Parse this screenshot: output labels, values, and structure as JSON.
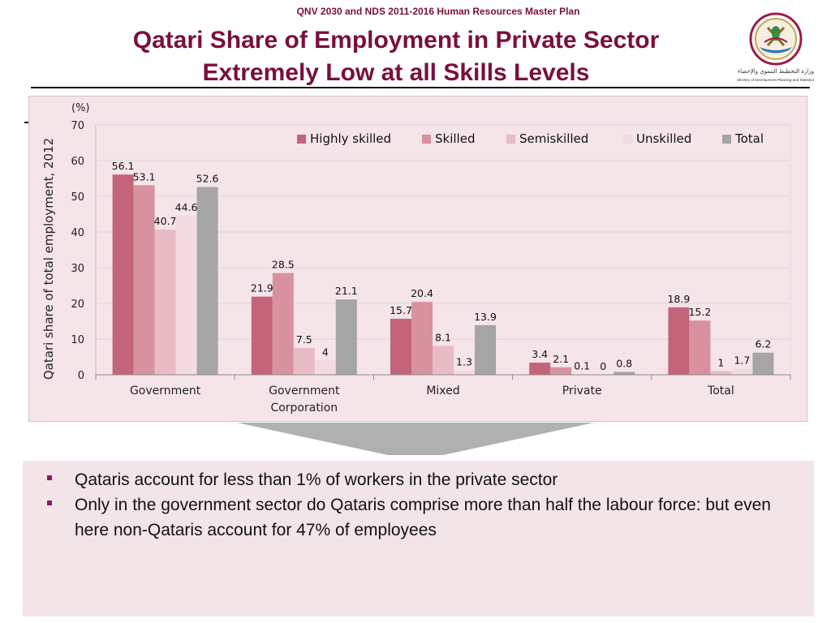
{
  "header": {
    "caption": "QNV 2030 and NDS 2011-2016 Human Resources Master Plan",
    "title_line1": "Qatari Share of Employment in Private Sector",
    "title_line2": "Extremely Low at all Skills Levels"
  },
  "logo": {
    "icon": "qatar-emblem-icon",
    "arabic_text": "وزارة التخطيط التنموي والإحصاء",
    "english_text": "Ministry of Development Planning and Statistics"
  },
  "chart_data": {
    "type": "bar",
    "title": "",
    "ylabel": "Qatari share of total employment, 2012",
    "yunit": "(%)",
    "ylim": [
      0,
      70
    ],
    "yticks": [
      0,
      10,
      20,
      30,
      40,
      50,
      60,
      70
    ],
    "grid": true,
    "legend_position": "top-right",
    "categories": [
      "Government",
      "Government\nCorporation",
      "Mixed",
      "Private",
      "Total"
    ],
    "category_lines": [
      [
        "Government"
      ],
      [
        "Government",
        "Corporation"
      ],
      [
        "Mixed"
      ],
      [
        "Private"
      ],
      [
        "Total"
      ]
    ],
    "series": [
      {
        "name": "Highly skilled",
        "color": "#c4647a",
        "values": [
          56.1,
          21.9,
          15.7,
          3.4,
          18.9
        ]
      },
      {
        "name": "Skilled",
        "color": "#d8919f",
        "values": [
          53.1,
          28.5,
          20.4,
          2.1,
          15.2
        ]
      },
      {
        "name": "Semiskilled",
        "color": "#e7bcc5",
        "values": [
          40.7,
          7.5,
          8.1,
          0.1,
          1
        ]
      },
      {
        "name": "Unskilled",
        "color": "#f2dbe0",
        "values": [
          44.6,
          4,
          1.3,
          0,
          1.7
        ]
      },
      {
        "name": "Total",
        "color": "#a5a5a5",
        "values": [
          52.6,
          21.1,
          13.9,
          0.8,
          6.2
        ]
      }
    ]
  },
  "bullets": [
    "Qataris account for less than 1% of workers in the private sector",
    "Only in the government sector do Qataris comprise more than half the labour force: but even here non-Qataris account for 47% of employees"
  ],
  "colors": {
    "title": "#7a0f3c",
    "bullet_marker": "#8b1a5c",
    "panel_bg": "#f5e4e8",
    "arrow": "#b0b0b0"
  }
}
